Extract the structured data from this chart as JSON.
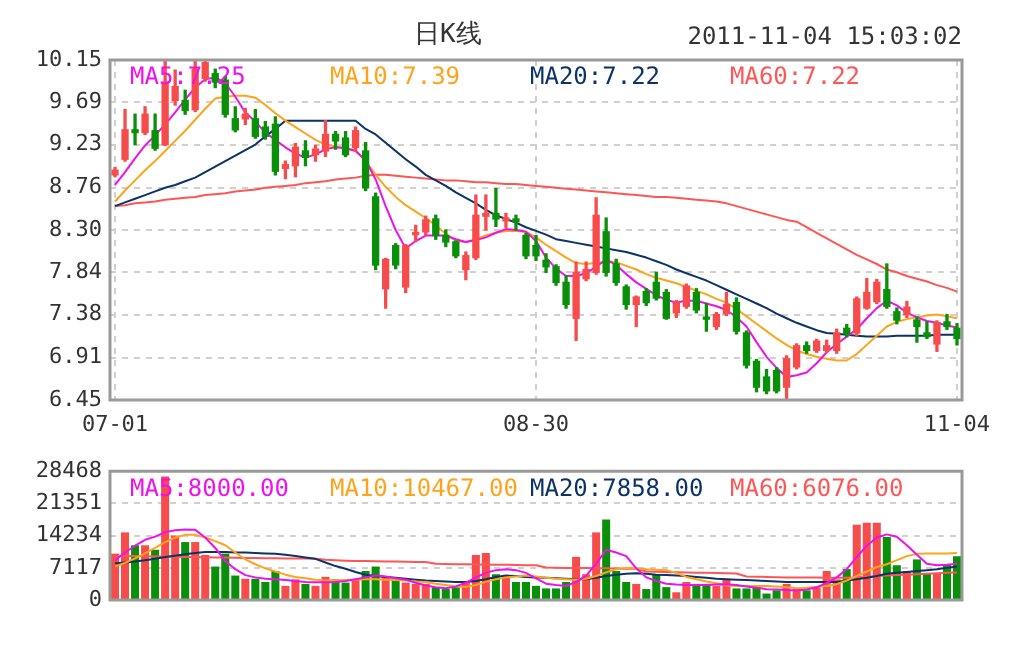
{
  "chart_data": [
    {
      "type": "candlestick",
      "title": "日K线",
      "annotations": [
        "2011-11-04 15:03:02"
      ],
      "categories": [
        "07-01",
        null,
        null,
        null,
        null,
        null,
        null,
        null,
        null,
        null,
        null,
        null,
        null,
        null,
        null,
        null,
        null,
        null,
        null,
        null,
        null,
        null,
        null,
        null,
        null,
        null,
        null,
        null,
        null,
        null,
        null,
        null,
        null,
        null,
        null,
        null,
        null,
        null,
        null,
        null,
        null,
        null,
        "08-30",
        null,
        null,
        null,
        null,
        null,
        null,
        null,
        null,
        null,
        null,
        null,
        null,
        null,
        null,
        null,
        null,
        null,
        null,
        null,
        null,
        null,
        null,
        null,
        null,
        null,
        null,
        null,
        null,
        null,
        null,
        null,
        null,
        null,
        null,
        null,
        null,
        null,
        null,
        null,
        null,
        null,
        "11-04"
      ],
      "ohlc": [
        [
          8.9,
          8.98,
          8.88,
          8.95
        ],
        [
          9.07,
          9.61,
          9.05,
          9.39
        ],
        [
          9.39,
          9.56,
          9.23,
          9.36
        ],
        [
          9.36,
          9.64,
          9.34,
          9.56
        ],
        [
          9.38,
          9.56,
          9.17,
          9.19
        ],
        [
          9.23,
          10.15,
          9.22,
          9.91
        ],
        [
          9.71,
          10.04,
          9.66,
          9.86
        ],
        [
          9.71,
          9.82,
          9.56,
          9.6
        ],
        [
          9.61,
          10.15,
          9.59,
          10.05
        ],
        [
          9.95,
          10.15,
          9.92,
          10.12
        ],
        [
          10.0,
          10.05,
          9.85,
          9.91
        ],
        [
          9.93,
          9.97,
          9.53,
          9.56
        ],
        [
          9.51,
          9.64,
          9.37,
          9.39
        ],
        [
          9.51,
          9.62,
          9.45,
          9.56
        ],
        [
          9.51,
          9.61,
          9.3,
          9.32
        ],
        [
          9.42,
          9.48,
          9.29,
          9.32
        ],
        [
          9.45,
          9.53,
          8.9,
          8.94
        ],
        [
          8.97,
          9.05,
          8.86,
          9.01
        ],
        [
          9.0,
          9.24,
          8.88,
          9.2
        ],
        [
          9.16,
          9.27,
          9.0,
          9.09
        ],
        [
          9.12,
          9.22,
          9.05,
          9.18
        ],
        [
          9.16,
          9.49,
          9.1,
          9.34
        ],
        [
          9.34,
          9.37,
          9.18,
          9.27
        ],
        [
          9.3,
          9.37,
          9.1,
          9.12
        ],
        [
          9.2,
          9.42,
          9.16,
          9.38
        ],
        [
          9.16,
          9.25,
          8.73,
          8.76
        ],
        [
          8.66,
          8.7,
          7.87,
          7.92
        ],
        [
          7.66,
          7.99,
          7.45,
          7.98
        ],
        [
          8.13,
          8.15,
          7.88,
          7.92
        ],
        [
          7.68,
          8.14,
          7.62,
          8.13
        ],
        [
          8.25,
          8.35,
          8.18,
          8.27
        ],
        [
          8.28,
          8.45,
          8.25,
          8.41
        ],
        [
          8.42,
          8.46,
          8.2,
          8.24
        ],
        [
          8.24,
          8.3,
          8.12,
          8.17
        ],
        [
          8.17,
          8.18,
          8.0,
          8.02
        ],
        [
          7.87,
          8.06,
          7.76,
          8.02
        ],
        [
          8.0,
          8.68,
          7.98,
          8.46
        ],
        [
          8.45,
          8.68,
          8.3,
          8.48
        ],
        [
          8.48,
          8.75,
          8.34,
          8.42
        ],
        [
          8.4,
          8.48,
          8.33,
          8.43
        ],
        [
          8.42,
          8.46,
          8.3,
          8.39
        ],
        [
          8.24,
          8.26,
          7.99,
          8.02
        ],
        [
          8.13,
          8.24,
          7.97,
          8.02
        ],
        [
          7.97,
          8.04,
          7.84,
          7.9
        ],
        [
          7.9,
          7.92,
          7.7,
          7.73
        ],
        [
          7.73,
          7.8,
          7.45,
          7.49
        ],
        [
          7.34,
          7.95,
          7.1,
          7.84
        ],
        [
          7.77,
          7.95,
          7.75,
          7.87
        ],
        [
          7.84,
          8.65,
          7.82,
          8.46
        ],
        [
          8.28,
          8.43,
          7.8,
          7.84
        ],
        [
          7.93,
          7.98,
          7.7,
          7.73
        ],
        [
          7.68,
          7.7,
          7.44,
          7.49
        ],
        [
          7.49,
          7.58,
          7.25,
          7.57
        ],
        [
          7.63,
          7.66,
          7.48,
          7.51
        ],
        [
          7.73,
          7.84,
          7.54,
          7.56
        ],
        [
          7.62,
          7.65,
          7.33,
          7.34
        ],
        [
          7.4,
          7.53,
          7.35,
          7.51
        ],
        [
          7.47,
          7.71,
          7.45,
          7.69
        ],
        [
          7.62,
          7.66,
          7.4,
          7.43
        ],
        [
          7.35,
          7.5,
          7.2,
          7.33
        ],
        [
          7.25,
          7.4,
          7.22,
          7.38
        ],
        [
          7.39,
          7.62,
          7.37,
          7.49
        ],
        [
          7.51,
          7.56,
          7.17,
          7.2
        ],
        [
          7.18,
          7.2,
          6.8,
          6.83
        ],
        [
          6.87,
          6.89,
          6.54,
          6.59
        ],
        [
          6.7,
          6.78,
          6.52,
          6.55
        ],
        [
          6.77,
          6.8,
          6.53,
          6.55
        ],
        [
          6.59,
          6.93,
          6.45,
          6.9
        ],
        [
          6.81,
          7.06,
          6.79,
          7.04
        ],
        [
          7.04,
          7.08,
          6.96,
          6.99
        ],
        [
          6.99,
          7.11,
          6.97,
          7.09
        ],
        [
          6.99,
          7.1,
          6.97,
          7.04
        ],
        [
          6.99,
          7.22,
          6.96,
          7.18
        ],
        [
          7.23,
          7.27,
          7.14,
          7.17
        ],
        [
          7.18,
          7.57,
          7.15,
          7.55
        ],
        [
          7.45,
          7.77,
          7.44,
          7.62
        ],
        [
          7.52,
          7.76,
          7.5,
          7.73
        ],
        [
          7.65,
          7.93,
          7.45,
          7.47
        ],
        [
          7.41,
          7.45,
          7.28,
          7.32
        ],
        [
          7.38,
          7.52,
          7.35,
          7.46
        ],
        [
          7.32,
          7.35,
          7.08,
          7.25
        ],
        [
          7.18,
          7.3,
          7.12,
          7.14
        ],
        [
          7.06,
          7.31,
          6.98,
          7.29
        ],
        [
          7.3,
          7.38,
          7.22,
          7.25
        ],
        [
          7.23,
          7.28,
          7.05,
          7.12
        ]
      ],
      "colors": [
        "#f64c4c",
        "#f64c4c",
        "#0a8f0a",
        "#f64c4c",
        "#0a8f0a",
        "#f64c4c",
        "#f64c4c",
        "#0a8f0a",
        "#f64c4c",
        "#f64c4c",
        "#0a8f0a",
        "#0a8f0a",
        "#0a8f0a",
        "#f64c4c",
        "#0a8f0a",
        "#0a8f0a",
        "#0a8f0a",
        "#f64c4c",
        "#f64c4c",
        "#0a8f0a",
        "#f64c4c",
        "#f64c4c",
        "#0a8f0a",
        "#0a8f0a",
        "#f64c4c",
        "#0a8f0a",
        "#0a8f0a",
        "#f64c4c",
        "#0a8f0a",
        "#f64c4c",
        "#f64c4c",
        "#f64c4c",
        "#0a8f0a",
        "#0a8f0a",
        "#0a8f0a",
        "#f64c4c",
        "#f64c4c",
        "#f64c4c",
        "#0a8f0a",
        "#f64c4c",
        "#0a8f0a",
        "#0a8f0a",
        "#0a8f0a",
        "#0a8f0a",
        "#0a8f0a",
        "#0a8f0a",
        "#f64c4c",
        "#f64c4c",
        "#f64c4c",
        "#0a8f0a",
        "#0a8f0a",
        "#0a8f0a",
        "#f64c4c",
        "#0a8f0a",
        "#0a8f0a",
        "#0a8f0a",
        "#f64c4c",
        "#f64c4c",
        "#0a8f0a",
        "#0a8f0a",
        "#f64c4c",
        "#f64c4c",
        "#0a8f0a",
        "#0a8f0a",
        "#0a8f0a",
        "#0a8f0a",
        "#0a8f0a",
        "#f64c4c",
        "#f64c4c",
        "#0a8f0a",
        "#f64c4c",
        "#f64c4c",
        "#f64c4c",
        "#0a8f0a",
        "#f64c4c",
        "#f64c4c",
        "#f64c4c",
        "#0a8f0a",
        "#0a8f0a",
        "#f64c4c",
        "#0a8f0a",
        "#0a8f0a",
        "#f64c4c",
        "#0a8f0a",
        "#0a8f0a"
      ],
      "series": [
        {
          "type": "line",
          "name": "MA5:7.25",
          "color": "#ee11ee",
          "values": [
            8.79,
            8.93,
            9.08,
            9.22,
            9.33,
            9.45,
            9.58,
            9.72,
            9.85,
            9.94,
            9.96,
            9.9,
            9.75,
            9.58,
            9.48,
            9.36,
            9.28,
            9.2,
            9.13,
            9.09,
            9.12,
            9.18,
            9.2,
            9.19,
            9.16,
            9.06,
            8.85,
            8.56,
            8.3,
            8.1,
            8.18,
            8.24,
            8.24,
            8.24,
            8.2,
            8.17,
            8.19,
            8.22,
            8.27,
            8.31,
            8.3,
            8.28,
            8.18,
            8.0,
            7.88,
            7.8,
            7.8,
            7.83,
            7.9,
            7.98,
            7.92,
            7.82,
            7.73,
            7.66,
            7.59,
            7.54,
            7.51,
            7.53,
            7.53,
            7.5,
            7.47,
            7.43,
            7.35,
            7.25,
            7.08,
            6.92,
            6.8,
            6.7,
            6.72,
            6.75,
            6.85,
            6.97,
            7.06,
            7.14,
            7.22,
            7.34,
            7.45,
            7.53,
            7.48,
            7.4,
            7.35,
            7.31,
            7.29,
            7.26,
            7.24
          ]
        },
        {
          "type": "line",
          "name": "MA10:7.39",
          "color": "#ffa31a",
          "values": [
            8.61,
            8.73,
            8.84,
            8.95,
            9.05,
            9.16,
            9.27,
            9.38,
            9.5,
            9.62,
            9.73,
            9.75,
            9.76,
            9.76,
            9.74,
            9.66,
            9.57,
            9.49,
            9.42,
            9.35,
            9.28,
            9.23,
            9.21,
            9.19,
            9.17,
            9.05,
            8.9,
            8.77,
            8.66,
            8.57,
            8.5,
            8.43,
            8.35,
            8.26,
            8.18,
            8.17,
            8.2,
            8.24,
            8.27,
            8.29,
            8.29,
            8.28,
            8.22,
            8.14,
            8.07,
            8.0,
            7.94,
            7.93,
            7.94,
            7.95,
            7.95,
            7.91,
            7.87,
            7.82,
            7.78,
            7.75,
            7.72,
            7.68,
            7.64,
            7.6,
            7.55,
            7.51,
            7.44,
            7.36,
            7.28,
            7.2,
            7.12,
            7.05,
            6.99,
            6.95,
            6.92,
            6.9,
            6.88,
            6.88,
            6.95,
            7.05,
            7.15,
            7.25,
            7.3,
            7.33,
            7.35,
            7.37,
            7.38,
            7.36,
            7.34
          ]
        },
        {
          "type": "line",
          "name": "MA20:7.22",
          "color": "#0b3366",
          "values": [
            8.56,
            8.6,
            8.64,
            8.68,
            8.72,
            8.76,
            8.79,
            8.83,
            8.87,
            8.93,
            8.99,
            9.05,
            9.11,
            9.17,
            9.23,
            9.32,
            9.4,
            9.49,
            9.49,
            9.49,
            9.49,
            9.49,
            9.49,
            9.49,
            9.49,
            9.4,
            9.34,
            9.25,
            9.16,
            9.07,
            8.99,
            8.9,
            8.84,
            8.78,
            8.71,
            8.65,
            8.59,
            8.52,
            8.46,
            8.42,
            8.38,
            8.33,
            8.29,
            8.25,
            8.2,
            8.18,
            8.16,
            8.14,
            8.12,
            8.1,
            8.08,
            8.06,
            8.03,
            8.0,
            7.96,
            7.92,
            7.87,
            7.83,
            7.79,
            7.75,
            7.7,
            7.65,
            7.6,
            7.55,
            7.5,
            7.45,
            7.39,
            7.34,
            7.29,
            7.25,
            7.21,
            7.18,
            7.17,
            7.16,
            7.15,
            7.14,
            7.14,
            7.14,
            7.15,
            7.15,
            7.15,
            7.15,
            7.16,
            7.16,
            7.16
          ]
        },
        {
          "type": "line",
          "name": "MA60:7.22",
          "color": "#ff5555",
          "values": [
            8.56,
            8.57,
            8.59,
            8.6,
            8.61,
            8.63,
            8.64,
            8.65,
            8.66,
            8.68,
            8.69,
            8.7,
            8.72,
            8.73,
            8.74,
            8.76,
            8.77,
            8.78,
            8.79,
            8.81,
            8.82,
            8.83,
            8.85,
            8.86,
            8.87,
            8.89,
            8.9,
            8.9,
            8.89,
            8.88,
            8.87,
            8.86,
            8.85,
            8.84,
            8.84,
            8.83,
            8.82,
            8.82,
            8.81,
            8.8,
            8.8,
            8.79,
            8.78,
            8.77,
            8.76,
            8.75,
            8.74,
            8.73,
            8.72,
            8.71,
            8.7,
            8.69,
            8.68,
            8.67,
            8.66,
            8.66,
            8.65,
            8.64,
            8.63,
            8.62,
            8.61,
            8.59,
            8.56,
            8.53,
            8.5,
            8.47,
            8.44,
            8.41,
            8.39,
            8.33,
            8.27,
            8.21,
            8.15,
            8.09,
            8.03,
            7.98,
            7.93,
            7.87,
            7.84,
            7.8,
            7.77,
            7.74,
            7.7,
            7.67,
            7.63
          ]
        }
      ],
      "ylim": [
        6.45,
        10.15
      ],
      "yticks": [
        6.45,
        6.91,
        7.38,
        7.84,
        {
          "value": 8.3,
          "label": "8.30"
        },
        8.76,
        9.23,
        9.69,
        10.15
      ],
      "grid": true,
      "legend": "top"
    },
    {
      "type": "bar",
      "categories": [
        null,
        null,
        null,
        null,
        null,
        null,
        null,
        null,
        null,
        null,
        null,
        null,
        null,
        null,
        null,
        null,
        null,
        null,
        null,
        null,
        null,
        null,
        null,
        null,
        null,
        null,
        null,
        null,
        null,
        null,
        null,
        null,
        null,
        null,
        null,
        null,
        null,
        null,
        null,
        null,
        null,
        null,
        null,
        null,
        null,
        null,
        null,
        null,
        null,
        null,
        null,
        null,
        null,
        null,
        null,
        null,
        null,
        null,
        null,
        null,
        null,
        null,
        null,
        null,
        null,
        null,
        null,
        null,
        null,
        null,
        null,
        null,
        null,
        null,
        null,
        null,
        null,
        null,
        null,
        null,
        null,
        null,
        null,
        null,
        null
      ],
      "values": [
        10246,
        14942,
        12096,
        12096,
        11100,
        27322,
        14230,
        12807,
        12807,
        9961,
        7400,
        10246,
        5407,
        4696,
        4696,
        3984,
        6404,
        3131,
        4554,
        3558,
        3131,
        5123,
        4554,
        3842,
        4554,
        6404,
        7400,
        5265,
        4554,
        3842,
        3558,
        3558,
        2846,
        2419,
        2846,
        3842,
        9961,
        10388,
        5692,
        5407,
        3984,
        3984,
        3131,
        2561,
        2561,
        3984,
        9534,
        5692,
        14942,
        17788,
        6404,
        3984,
        3558,
        2419,
        5692,
        2846,
        1708,
        3984,
        3558,
        3558,
        3131,
        4696,
        2561,
        2561,
        3131,
        1423,
        2135,
        3558,
        2419,
        2135,
        2846,
        6404,
        4554,
        6830,
        16649,
        17076,
        17076,
        13945,
        7684,
        6404,
        8965,
        5977,
        5977,
        7827,
        9676
      ],
      "colors": [
        "#f64c4c",
        "#f64c4c",
        "#0a8f0a",
        "#f64c4c",
        "#0a8f0a",
        "#f64c4c",
        "#f64c4c",
        "#0a8f0a",
        "#f64c4c",
        "#f64c4c",
        "#0a8f0a",
        "#0a8f0a",
        "#0a8f0a",
        "#f64c4c",
        "#0a8f0a",
        "#0a8f0a",
        "#0a8f0a",
        "#f64c4c",
        "#f64c4c",
        "#0a8f0a",
        "#f64c4c",
        "#f64c4c",
        "#0a8f0a",
        "#0a8f0a",
        "#f64c4c",
        "#0a8f0a",
        "#0a8f0a",
        "#f64c4c",
        "#0a8f0a",
        "#f64c4c",
        "#f64c4c",
        "#f64c4c",
        "#0a8f0a",
        "#0a8f0a",
        "#0a8f0a",
        "#f64c4c",
        "#f64c4c",
        "#f64c4c",
        "#0a8f0a",
        "#f64c4c",
        "#0a8f0a",
        "#0a8f0a",
        "#0a8f0a",
        "#0a8f0a",
        "#0a8f0a",
        "#0a8f0a",
        "#f64c4c",
        "#f64c4c",
        "#f64c4c",
        "#0a8f0a",
        "#0a8f0a",
        "#0a8f0a",
        "#f64c4c",
        "#0a8f0a",
        "#0a8f0a",
        "#0a8f0a",
        "#f64c4c",
        "#f64c4c",
        "#0a8f0a",
        "#0a8f0a",
        "#f64c4c",
        "#f64c4c",
        "#0a8f0a",
        "#0a8f0a",
        "#0a8f0a",
        "#0a8f0a",
        "#0a8f0a",
        "#f64c4c",
        "#f64c4c",
        "#0a8f0a",
        "#f64c4c",
        "#f64c4c",
        "#f64c4c",
        "#0a8f0a",
        "#f64c4c",
        "#f64c4c",
        "#f64c4c",
        "#0a8f0a",
        "#0a8f0a",
        "#f64c4c",
        "#0a8f0a",
        "#0a8f0a",
        "#f64c4c",
        "#0a8f0a",
        "#0a8f0a"
      ],
      "series": [
        {
          "type": "line",
          "name": "MA5:8000.00",
          "color": "#ee11ee",
          "values": [
            8800,
            10500,
            12000,
            13300,
            14000,
            15000,
            15400,
            15600,
            15500,
            13800,
            11500,
            8600,
            6800,
            5500,
            5000,
            4700,
            4600,
            4400,
            4200,
            4000,
            3900,
            3900,
            4000,
            4200,
            4600,
            5000,
            5400,
            5200,
            4800,
            4500,
            3800,
            3200,
            2800,
            2600,
            3000,
            3800,
            5000,
            6000,
            6600,
            6800,
            6600,
            6000,
            4800,
            3600,
            3300,
            3100,
            4000,
            5400,
            8000,
            11100,
            10500,
            9700,
            7000,
            5000,
            4200,
            3600,
            3400,
            3300,
            3300,
            3300,
            3400,
            3500,
            3300,
            3000,
            2700,
            2400,
            2300,
            2200,
            2100,
            2300,
            2800,
            3800,
            5000,
            6800,
            9500,
            12000,
            13800,
            14500,
            14000,
            12100,
            10000,
            8000,
            7700,
            7800,
            8000
          ]
        },
        {
          "type": "line",
          "name": "MA10:10467.00",
          "color": "#ffa31a",
          "values": [
            7400,
            8200,
            9200,
            10300,
            11500,
            12800,
            13800,
            14400,
            14400,
            13800,
            13000,
            12100,
            10500,
            9000,
            7900,
            7000,
            6300,
            5600,
            5100,
            4800,
            4500,
            4300,
            4300,
            4400,
            4500,
            4600,
            4600,
            4500,
            4400,
            4300,
            4100,
            4000,
            3600,
            3300,
            3000,
            2900,
            3300,
            4000,
            4600,
            5000,
            5200,
            5400,
            5200,
            4900,
            4700,
            4600,
            4500,
            4700,
            5300,
            6100,
            6800,
            7100,
            7000,
            6800,
            6700,
            6600,
            6000,
            5100,
            4600,
            4100,
            3700,
            3200,
            3100,
            3100,
            3100,
            3100,
            3000,
            2800,
            2600,
            2700,
            2900,
            3100,
            3500,
            4300,
            5300,
            6300,
            7300,
            7900,
            8800,
            9700,
            10200,
            10300,
            10300,
            10300,
            10400
          ]
        },
        {
          "type": "line",
          "name": "MA20:7858.00",
          "color": "#0b3366",
          "values": [
            8100,
            8300,
            8500,
            8800,
            9100,
            9500,
            9800,
            10100,
            10400,
            10600,
            10600,
            10600,
            10500,
            10500,
            10400,
            10300,
            10200,
            10000,
            9700,
            9400,
            9100,
            8300,
            7500,
            6900,
            6200,
            5600,
            5300,
            5100,
            4900,
            4700,
            4500,
            4300,
            4200,
            4100,
            4000,
            4000,
            4200,
            4600,
            5100,
            5400,
            5300,
            5100,
            5000,
            4900,
            4800,
            4700,
            4600,
            4600,
            4900,
            5300,
            5600,
            5800,
            5900,
            5800,
            5600,
            5500,
            5400,
            5300,
            5100,
            4900,
            4700,
            4600,
            4500,
            4400,
            4300,
            4200,
            4100,
            4000,
            4000,
            4000,
            4000,
            4000,
            4000,
            4300,
            4600,
            4900,
            5300,
            5800,
            6000,
            6200,
            6400,
            6600,
            6800,
            7100,
            7400
          ]
        },
        {
          "type": "line",
          "name": "MA60:6076.00",
          "color": "#ff5555",
          "values": [
            9700,
            9700,
            9700,
            9650,
            9600,
            9600,
            9550,
            9500,
            9500,
            9450,
            9400,
            9400,
            9350,
            9300,
            9300,
            9250,
            9250,
            9200,
            9200,
            9150,
            9100,
            8900,
            8800,
            8700,
            8600,
            8600,
            8550,
            8500,
            8500,
            8450,
            8400,
            8400,
            8000,
            7950,
            7900,
            7900,
            7850,
            7850,
            7800,
            7800,
            7750,
            7700,
            7700,
            7200,
            7150,
            7100,
            7100,
            7050,
            7000,
            7000,
            6950,
            6900,
            6900,
            6300,
            6250,
            6200,
            6150,
            6100,
            6050,
            6000,
            5950,
            5900,
            5850,
            5200,
            5150,
            5100,
            5050,
            5000,
            5000,
            4950,
            4950,
            4900,
            4900,
            4900,
            5000,
            5100,
            5300,
            5400,
            5500,
            5600,
            5700,
            5800,
            5900,
            6000,
            6076
          ]
        }
      ],
      "ylim": [
        0,
        28468
      ],
      "yticks": [
        0,
        7117,
        14234,
        21351,
        28468
      ],
      "grid": true,
      "legend": "top"
    }
  ]
}
